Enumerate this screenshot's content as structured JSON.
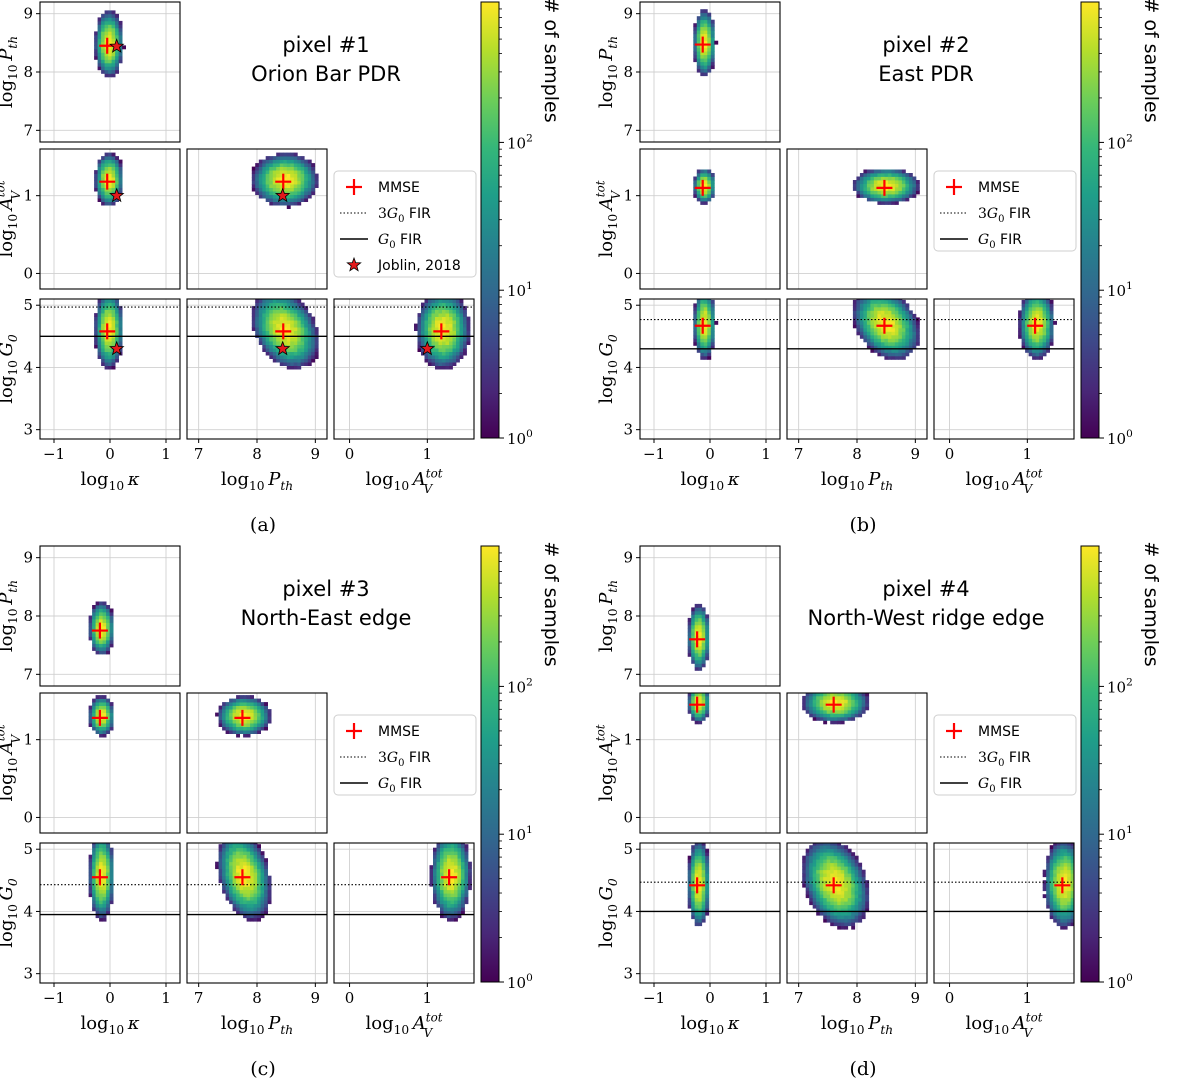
{
  "chart_data": [
    {
      "type": "heatmap",
      "panel_label": "(a)",
      "title_line1": "pixel #1",
      "title_line2": "Orion Bar PDR",
      "mmse": {
        "kappa": -0.05,
        "Pth": 8.45,
        "AV": 1.18,
        "G0": 4.58
      },
      "joblin": {
        "kappa": 0.12,
        "Pth": 8.44,
        "AV": 1.0,
        "G0": 4.3
      },
      "fir_G0": 4.5,
      "fir_3G0": 4.97,
      "spread": {
        "kappa": 0.09,
        "Pth": 0.2,
        "AV": 0.12,
        "G0": 0.22
      },
      "legend": [
        "MMSE",
        "3G0 FIR",
        "G0 FIR",
        "Joblin, 2018"
      ]
    },
    {
      "type": "heatmap",
      "panel_label": "(b)",
      "title_line1": "pixel #2",
      "title_line2": "East PDR",
      "mmse": {
        "kappa": -0.13,
        "Pth": 8.47,
        "AV": 1.1,
        "G0": 4.67
      },
      "joblin": null,
      "fir_G0": 4.3,
      "fir_3G0": 4.77,
      "spread": {
        "kappa": 0.07,
        "Pth": 0.2,
        "AV": 0.08,
        "G0": 0.2
      },
      "legend": [
        "MMSE",
        "3G0 FIR",
        "G0 FIR"
      ]
    },
    {
      "type": "heatmap",
      "panel_label": "(c)",
      "title_line1": "pixel #3",
      "title_line2": "North-East edge",
      "mmse": {
        "kappa": -0.18,
        "Pth": 7.75,
        "AV": 1.28,
        "G0": 4.55
      },
      "joblin": null,
      "fir_G0": 3.95,
      "fir_3G0": 4.43,
      "spread": {
        "kappa": 0.08,
        "Pth": 0.16,
        "AV": 0.09,
        "G0": 0.25
      },
      "legend": [
        "MMSE",
        "3G0 FIR",
        "G0 FIR"
      ]
    },
    {
      "type": "heatmap",
      "panel_label": "(d)",
      "title_line1": "pixel #4",
      "title_line2": "North-West ridge edge",
      "mmse": {
        "kappa": -0.23,
        "Pth": 7.6,
        "AV": 1.45,
        "G0": 4.42
      },
      "joblin": null,
      "fir_G0": 4.0,
      "fir_3G0": 4.47,
      "spread": {
        "kappa": 0.07,
        "Pth": 0.2,
        "AV": 0.09,
        "G0": 0.25
      },
      "legend": [
        "MMSE",
        "3G0 FIR",
        "G0 FIR"
      ]
    }
  ],
  "axes": {
    "kappa": {
      "range": [
        -1.25,
        1.25
      ],
      "ticks": [
        -1,
        0,
        1
      ]
    },
    "Pth": {
      "range": [
        6.8,
        9.2
      ],
      "ticks": [
        7,
        8,
        9
      ]
    },
    "AV": {
      "range": [
        -0.2,
        1.6
      ],
      "ticks": [
        0,
        1
      ]
    },
    "G0": {
      "range": [
        2.85,
        5.1
      ],
      "ticks": [
        3,
        4,
        5
      ]
    }
  },
  "tick_labels": {
    "kappa": [
      "−1",
      "0",
      "1"
    ],
    "Pth": [
      "7",
      "8",
      "9"
    ],
    "AV": [
      "0",
      "1"
    ],
    "G0": [
      "3",
      "4",
      "5"
    ]
  },
  "labels": {
    "x_kappa": {
      "base": "log",
      "sub": "10",
      "sym": "κ"
    },
    "x_Pth": {
      "base": "log",
      "sub": "10",
      "sym": "P",
      "symsub": "th"
    },
    "x_AV": {
      "base": "log",
      "sub": "10",
      "sym": "A",
      "symsub": "V",
      "symsup": "tot"
    },
    "y_Pth": {
      "base": "log",
      "sub": "10",
      "sym": "P",
      "symsub": "th"
    },
    "y_AV": {
      "base": "log",
      "sub": "10",
      "sym": "A",
      "symsub": "V",
      "symsup": "tot"
    },
    "y_G0": {
      "base": "log",
      "sub": "10",
      "sym": "G",
      "symsub": "0"
    }
  },
  "legend_labels": {
    "mmse": "MMSE",
    "fir3": {
      "prefix": "3",
      "sym": "G",
      "sub": "0",
      "suffix": " FIR"
    },
    "fir": {
      "sym": "G",
      "sub": "0",
      "suffix": " FIR"
    },
    "joblin": "Joblin, 2018"
  },
  "colorbar": {
    "label": "# of samples",
    "ticks": [
      {
        "value": 0,
        "label_base": "10",
        "label_exp": "0"
      },
      {
        "value": 1,
        "label_base": "10",
        "label_exp": "1"
      },
      {
        "value": 2,
        "label_base": "10",
        "label_exp": "2"
      }
    ],
    "log_max": 2.95,
    "colormap": [
      "#440154",
      "#482878",
      "#3e4989",
      "#31688e",
      "#26828e",
      "#1f9e89",
      "#35b779",
      "#6ece58",
      "#b5de2b",
      "#fde725"
    ]
  },
  "colors": {
    "mmse": "#ff0000",
    "star": "#e31a1c",
    "line": "#000000",
    "grid": "#d0d0d0"
  }
}
